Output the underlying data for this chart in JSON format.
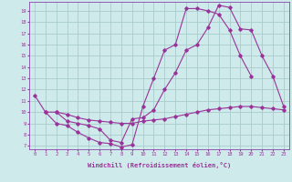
{
  "xlabel": "Windchill (Refroidissement éolien,°C)",
  "bg_color": "#ceeaea",
  "grid_color": "#aacccc",
  "line_color": "#993399",
  "spine_color": "#8844aa",
  "xlim": [
    -0.5,
    23.5
  ],
  "ylim": [
    6.7,
    19.8
  ],
  "xticks": [
    0,
    1,
    2,
    3,
    4,
    5,
    6,
    7,
    8,
    9,
    10,
    11,
    12,
    13,
    14,
    15,
    16,
    17,
    18,
    19,
    20,
    21,
    22,
    23
  ],
  "yticks": [
    7,
    8,
    9,
    10,
    11,
    12,
    13,
    14,
    15,
    16,
    17,
    18,
    19
  ],
  "curve1_x": [
    0,
    1,
    2,
    3,
    4,
    5,
    6,
    7,
    8,
    9,
    10,
    11,
    12,
    13,
    14,
    15,
    16,
    17,
    18,
    19,
    20,
    21
  ],
  "curve1_y": [
    11.5,
    10.0,
    9.0,
    8.8,
    8.2,
    7.7,
    7.3,
    7.2,
    6.9,
    7.1,
    10.5,
    13.0,
    15.5,
    16.0,
    19.2,
    19.2,
    19.0,
    18.7,
    17.3,
    15.0,
    13.2,
    null
  ],
  "curve2_x": [
    2,
    3,
    4,
    5,
    6,
    7,
    8,
    9,
    10,
    11,
    12,
    13,
    14,
    15,
    16,
    17,
    18,
    19,
    20,
    21,
    22,
    23
  ],
  "curve2_y": [
    10.0,
    9.2,
    9.0,
    8.8,
    8.5,
    7.5,
    7.3,
    9.4,
    9.5,
    10.2,
    12.0,
    13.5,
    15.5,
    16.0,
    17.5,
    19.5,
    19.3,
    17.4,
    17.3,
    15.0,
    13.2,
    10.5
  ],
  "curve3_x": [
    1,
    2,
    3,
    4,
    5,
    6,
    7,
    8,
    9,
    10,
    11,
    12,
    13,
    14,
    15,
    16,
    17,
    18,
    19,
    20,
    21,
    22,
    23
  ],
  "curve3_y": [
    10.0,
    10.0,
    9.8,
    9.5,
    9.3,
    9.2,
    9.1,
    9.0,
    9.0,
    9.2,
    9.3,
    9.4,
    9.6,
    9.8,
    10.0,
    10.2,
    10.3,
    10.4,
    10.5,
    10.5,
    10.4,
    10.3,
    10.2
  ]
}
